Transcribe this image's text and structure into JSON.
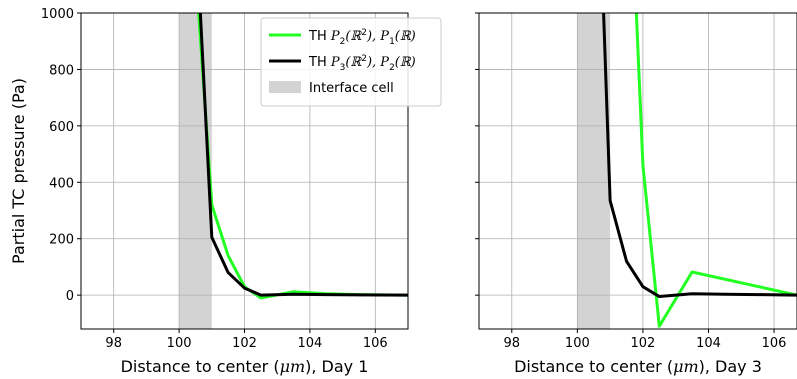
{
  "chart_data": [
    {
      "type": "line",
      "xlabel_prefix": "Distance to center (",
      "xlabel_unit": "μm",
      "xlabel_suffix": "), Day 1",
      "ylabel": "Partial TC pressure (Pa)",
      "xlim": [
        97,
        107
      ],
      "ylim": [
        -120,
        1000
      ],
      "xticks": [
        98,
        100,
        102,
        104,
        106
      ],
      "yticks": [
        0,
        200,
        400,
        600,
        800,
        1000
      ],
      "grid": true,
      "shaded_region": {
        "x0": 100.0,
        "x1": 101.0,
        "color": "#d3d3d3",
        "name": "Interface cell"
      },
      "legend": {
        "placement": "top-right",
        "entries": [
          {
            "prefix": "TH ",
            "math": [
              "P",
              "2",
              "(ℝ",
              "2",
              "), P",
              "1",
              "(ℝ)"
            ],
            "color": "#22ff22",
            "kind": "line"
          },
          {
            "prefix": "TH ",
            "math": [
              "P",
              "3",
              "(ℝ",
              "2",
              "), P",
              "2",
              "(ℝ)"
            ],
            "color": "#000000",
            "kind": "line"
          },
          {
            "label": "Interface cell",
            "color": "#d3d3d3",
            "kind": "patch"
          }
        ]
      },
      "series": [
        {
          "color": "#22ff22",
          "x": [
            100.6,
            101.0,
            101.5,
            102.0,
            102.5,
            103.5,
            104.5,
            105.5,
            107
          ],
          "y": [
            1000,
            320,
            140,
            30,
            -10,
            12,
            5,
            2,
            0
          ]
        },
        {
          "color": "#000000",
          "x": [
            100.65,
            101.0,
            101.5,
            102.0,
            102.5,
            103.5,
            104.5,
            105.5,
            107
          ],
          "y": [
            1000,
            205,
            80,
            25,
            0,
            3,
            2,
            1,
            0
          ]
        }
      ]
    },
    {
      "type": "line",
      "xlabel_prefix": "Distance to center (",
      "xlabel_unit": "μm",
      "xlabel_suffix": "), Day 3",
      "ylabel": "",
      "xlim": [
        97,
        106.7
      ],
      "ylim": [
        -120,
        1000
      ],
      "xticks": [
        98,
        100,
        102,
        104,
        106
      ],
      "yticks": [
        0,
        200,
        400,
        600,
        800,
        1000
      ],
      "grid": true,
      "shaded_region": {
        "x0": 100.0,
        "x1": 101.0,
        "color": "#d3d3d3",
        "name": "Interface cell"
      },
      "series": [
        {
          "color": "#22ff22",
          "x": [
            101.8,
            102.0,
            102.5,
            103.5,
            106.7
          ],
          "y": [
            1000,
            460,
            -110,
            82,
            0
          ]
        },
        {
          "color": "#000000",
          "x": [
            100.8,
            101.0,
            101.5,
            102.0,
            102.5,
            103.5,
            104.5,
            105.5,
            106.7
          ],
          "y": [
            1000,
            335,
            120,
            30,
            -5,
            5,
            3,
            2,
            0
          ]
        }
      ]
    }
  ]
}
